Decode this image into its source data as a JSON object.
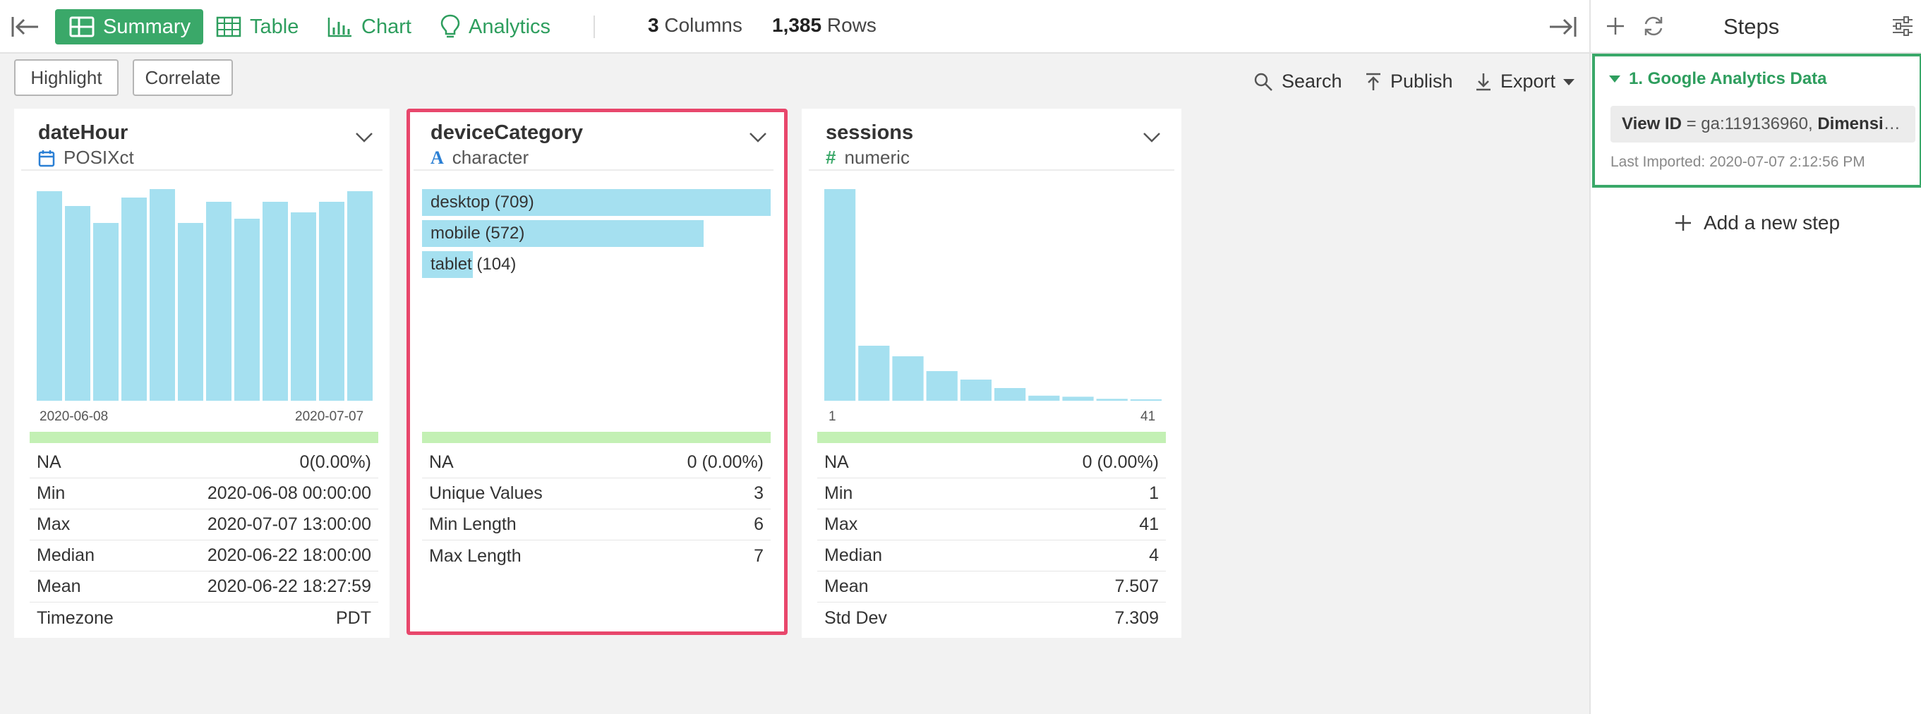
{
  "toolbar": {
    "tabs": [
      {
        "label": "Summary",
        "icon": "grid-icon"
      },
      {
        "label": "Table",
        "icon": "table-icon"
      },
      {
        "label": "Chart",
        "icon": "bar-chart-icon"
      },
      {
        "label": "Analytics",
        "icon": "lightbulb-icon"
      }
    ],
    "columns_count": "3",
    "columns_label": "Columns",
    "rows_count": "1,385",
    "rows_label": "Rows"
  },
  "actions": {
    "highlight": "Highlight",
    "correlate": "Correlate",
    "search": "Search",
    "publish": "Publish",
    "export": "Export"
  },
  "columns": [
    {
      "name": "dateHour",
      "type": "POSIXct",
      "type_icon": "calendar-icon",
      "axis_min": "2020-06-08",
      "axis_max": "2020-07-07",
      "stats": [
        {
          "label": "NA",
          "value": "0(0.00%)"
        },
        {
          "label": "Min",
          "value": "2020-06-08 00:00:00"
        },
        {
          "label": "Max",
          "value": "2020-07-07 13:00:00"
        },
        {
          "label": "Median",
          "value": "2020-06-22 18:00:00"
        },
        {
          "label": "Mean",
          "value": "2020-06-22 18:27:59"
        },
        {
          "label": "Timezone",
          "value": "PDT"
        }
      ]
    },
    {
      "name": "deviceCategory",
      "type": "character",
      "type_icon": "text-a-icon",
      "stats": [
        {
          "label": "NA",
          "value": "0 (0.00%)"
        },
        {
          "label": "Unique Values",
          "value": "3"
        },
        {
          "label": "Min Length",
          "value": "6"
        },
        {
          "label": "Max Length",
          "value": "7"
        }
      ]
    },
    {
      "name": "sessions",
      "type": "numeric",
      "type_icon": "hash-icon",
      "axis_min": "1",
      "axis_max": "41",
      "stats": [
        {
          "label": "NA",
          "value": "0 (0.00%)"
        },
        {
          "label": "Min",
          "value": "1"
        },
        {
          "label": "Max",
          "value": "41"
        },
        {
          "label": "Median",
          "value": "4"
        },
        {
          "label": "Mean",
          "value": "7.507"
        },
        {
          "label": "Std Dev",
          "value": "7.309"
        }
      ]
    }
  ],
  "chart_data": [
    {
      "type": "bar",
      "column": "dateHour",
      "values": [
        99,
        92,
        84,
        96,
        100,
        84,
        94,
        86,
        94,
        89,
        94,
        99
      ],
      "ylim": [
        0,
        100
      ],
      "color": "#a5e0f0"
    },
    {
      "type": "bar",
      "orientation": "horizontal",
      "column": "deviceCategory",
      "categories": [
        "desktop",
        "mobile",
        "tablet"
      ],
      "values": [
        709,
        572,
        104
      ],
      "labels": [
        "desktop (709)",
        "mobile (572)",
        "tablet (104)"
      ],
      "color": "#a5e0f0"
    },
    {
      "type": "bar",
      "column": "sessions",
      "values": [
        100,
        26,
        21,
        14,
        10,
        6,
        2.4,
        1.9,
        0.9,
        0.6
      ],
      "ylim": [
        0,
        100
      ],
      "xlim": [
        1,
        41
      ],
      "color": "#a5e0f0"
    }
  ],
  "steps": {
    "title": "Steps",
    "step1_title": "1. Google Analytics Data",
    "step1_view_label": "View ID",
    "step1_view_value": " = ga:119136960, ",
    "step1_dim_label": "Dimensions",
    "step1_imported": "Last Imported: 2020-07-07 2:12:56 PM",
    "add_step": "Add a new step"
  },
  "colors": {
    "accent": "#3aa869",
    "highlight_border": "#e8476c",
    "bar": "#a5e0f0",
    "na_bar": "#c3f0b4"
  }
}
